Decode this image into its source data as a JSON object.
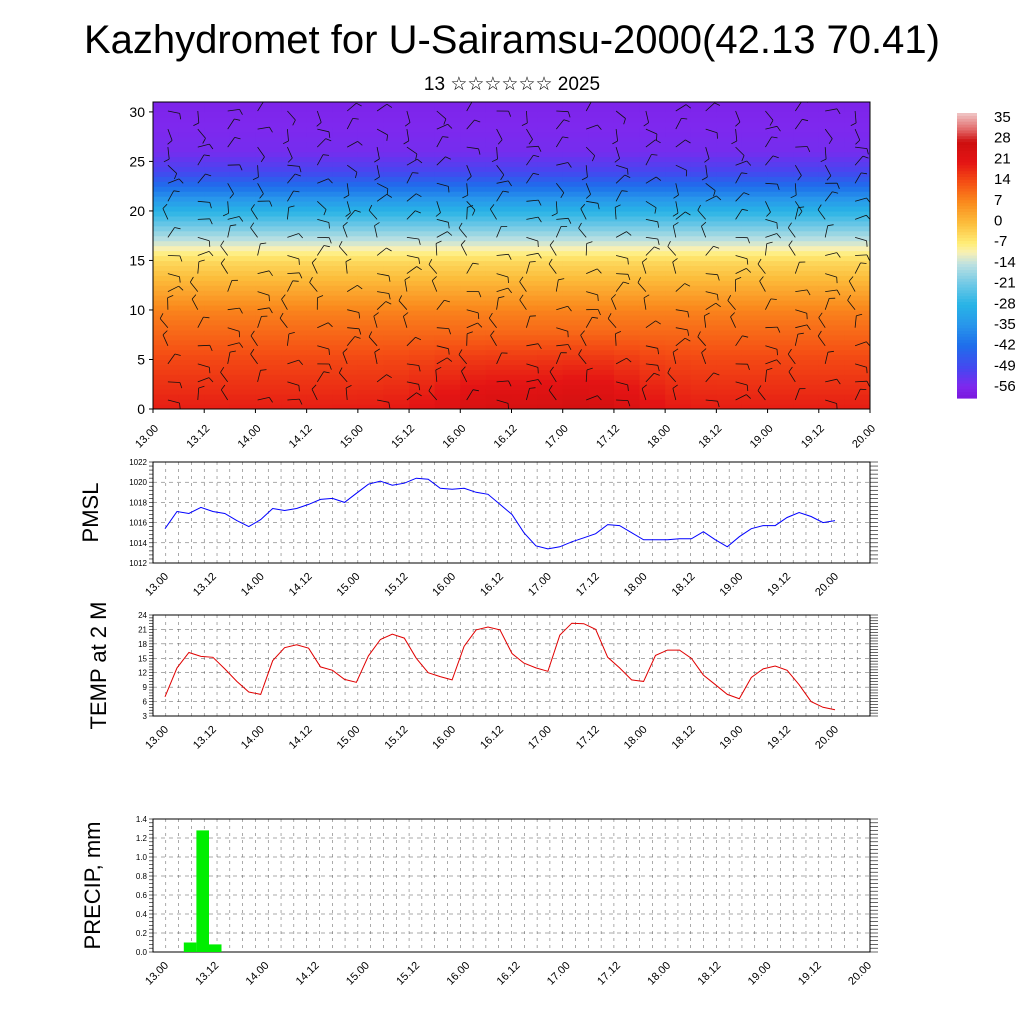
{
  "header": {
    "title": "Kazhydromet for U-Sairamsu-2000(42.13 70.41)",
    "subtitle": "13 ☆☆☆☆☆☆ 2025"
  },
  "chart_data": [
    {
      "type": "heatmap",
      "name": "cross-section",
      "xlabel": "",
      "ylabel": "",
      "x_ticks": [
        "13.00",
        "13.12",
        "14.00",
        "14.12",
        "15.00",
        "15.12",
        "16.00",
        "16.12",
        "17.00",
        "17.12",
        "18.00",
        "18.12",
        "19.00",
        "19.12",
        "20.00"
      ],
      "ylim": [
        0,
        31
      ],
      "y_ticks": [
        0,
        5,
        10,
        15,
        20,
        25,
        30
      ],
      "colorbar_labels": [
        "35",
        "28",
        "21",
        "14",
        "7",
        "0",
        "-7",
        "-14",
        "-21",
        "-28",
        "-35",
        "-42",
        "-49",
        "-56"
      ],
      "color_range": [
        -60,
        38
      ],
      "value_by_level": [
        {
          "level": 0,
          "value": 20
        },
        {
          "level": 5,
          "value": 15
        },
        {
          "level": 10,
          "value": 8
        },
        {
          "level": 15,
          "value": -4
        },
        {
          "level": 20,
          "value": -28
        },
        {
          "level": 24,
          "value": -50
        },
        {
          "level": 26,
          "value": -55
        },
        {
          "level": 31,
          "value": -57
        }
      ],
      "overlay": "wind barbs"
    },
    {
      "type": "line",
      "name": "pmsl",
      "ylabel": "PMSL",
      "ylim": [
        1012,
        1022
      ],
      "y_ticks": [
        1012,
        1014,
        1016,
        1018,
        1020,
        1022
      ],
      "x_ticks": [
        "13.00",
        "13.12",
        "14.00",
        "14.12",
        "15.00",
        "15.12",
        "16.00",
        "16.12",
        "17.00",
        "17.12",
        "18.00",
        "18.12",
        "19.00",
        "19.12",
        "20.00"
      ],
      "color": "#0000ff",
      "values": [
        1015.4,
        1017.1,
        1016.9,
        1017.5,
        1017.1,
        1016.9,
        1016.2,
        1015.6,
        1016.3,
        1017.4,
        1017.2,
        1017.4,
        1017.8,
        1018.3,
        1018.4,
        1018.0,
        1018.9,
        1019.8,
        1020.1,
        1019.7,
        1019.9,
        1020.4,
        1020.3,
        1019.4,
        1019.3,
        1019.4,
        1019.0,
        1018.8,
        1017.8,
        1016.8,
        1015.0,
        1013.7,
        1013.4,
        1013.6,
        1014.1,
        1014.5,
        1014.9,
        1015.8,
        1015.7,
        1015.0,
        1014.3,
        1014.3,
        1014.3,
        1014.4,
        1014.4,
        1015.1,
        1014.3,
        1013.6,
        1014.6,
        1015.4,
        1015.7,
        1015.7,
        1016.5,
        1017.0,
        1016.6,
        1016.0,
        1016.2
      ]
    },
    {
      "type": "line",
      "name": "temp",
      "ylabel": "TEMP at 2 M",
      "ylim": [
        3,
        24
      ],
      "y_ticks": [
        3,
        6,
        9,
        12,
        15,
        18,
        21,
        24
      ],
      "x_ticks": [
        "13.00",
        "13.12",
        "14.00",
        "14.12",
        "15.00",
        "15.12",
        "16.00",
        "16.12",
        "17.00",
        "17.12",
        "18.00",
        "18.12",
        "19.00",
        "19.12",
        "20.00"
      ],
      "color": "#e00000",
      "values": [
        7.0,
        13.0,
        16.2,
        15.4,
        15.2,
        12.8,
        10.2,
        8.0,
        7.5,
        14.5,
        17.2,
        17.8,
        17.1,
        13.2,
        12.5,
        10.6,
        10.0,
        15.5,
        18.9,
        20.0,
        19.2,
        15.0,
        12.0,
        11.2,
        10.5,
        17.5,
        20.9,
        21.5,
        20.9,
        16.0,
        14.0,
        13.0,
        12.3,
        19.8,
        22.3,
        22.2,
        21.0,
        15.2,
        13.0,
        10.5,
        10.2,
        15.6,
        16.7,
        16.7,
        15.0,
        11.5,
        9.5,
        7.5,
        6.6,
        11.0,
        12.8,
        13.4,
        12.5,
        9.5,
        6.0,
        4.8,
        4.3
      ]
    },
    {
      "type": "bar",
      "name": "precip",
      "ylabel": "PRECIP, mm",
      "ylim": [
        0,
        1.4
      ],
      "y_ticks": [
        "0.0",
        "0.2",
        "0.4",
        "0.6",
        "0.8",
        "1.0",
        "1.2",
        "1.4"
      ],
      "x_ticks": [
        "13.00",
        "13.12",
        "14.00",
        "14.12",
        "15.00",
        "15.12",
        "16.00",
        "16.12",
        "17.00",
        "17.12",
        "18.00",
        "18.12",
        "19.00",
        "19.12",
        "20.00"
      ],
      "color": "#00ee00",
      "bars": [
        {
          "x": 2,
          "value": 0.1
        },
        {
          "x": 3,
          "value": 1.28
        },
        {
          "x": 4,
          "value": 0.08
        }
      ]
    }
  ]
}
